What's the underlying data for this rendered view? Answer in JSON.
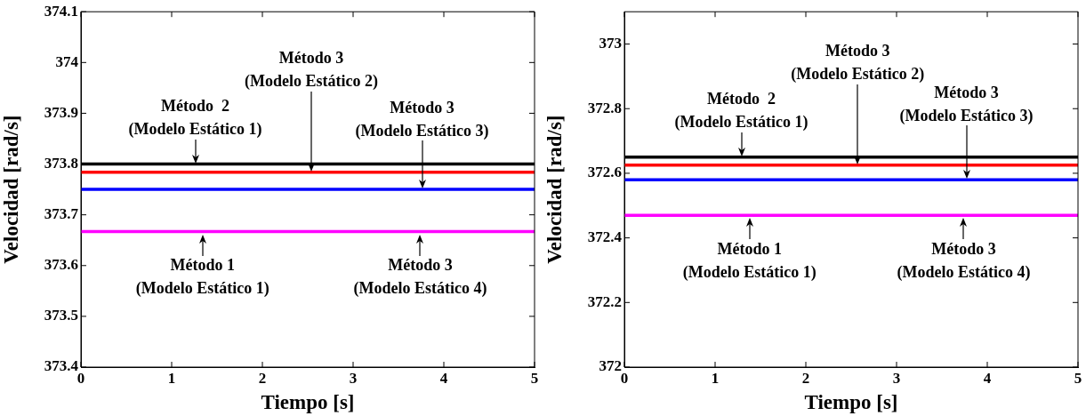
{
  "chart_data": [
    {
      "type": "line",
      "xlabel": "Tiempo [s]",
      "ylabel": "Velocidad [rad/s]",
      "ref_lines": [
        {
          "axis": "y",
          "value": 373.8,
          "color": "#000000"
        },
        {
          "axis": "y",
          "value": 373.784,
          "color": "#ff0000"
        },
        {
          "axis": "y",
          "value": 373.75,
          "color": "#0000ff"
        },
        {
          "axis": "y",
          "value": 373.667,
          "color": "#ff00ff"
        }
      ],
      "xlim": [
        0,
        5
      ],
      "xticks": [
        0,
        1,
        2,
        3,
        4,
        5
      ],
      "ylim": [
        373.4,
        374.1
      ],
      "yticks": [
        373.4,
        373.5,
        373.6,
        373.7,
        373.8,
        373.9,
        374,
        374.1
      ],
      "annotations": [
        {
          "text": "Método  2\n(Modelo Estático 1)",
          "x": 1.26,
          "y": 373.8
        },
        {
          "text": "Método 3\n(Modelo Estático 2)",
          "x": 2.54,
          "y": 373.784
        },
        {
          "text": "Método 3\n(Modelo Estático 3)",
          "x": 3.76,
          "y": 373.75
        },
        {
          "text": "Método 1\n(Modelo Estático 1)",
          "x": 1.34,
          "y": 373.667
        },
        {
          "text": "Método 3\n(Modelo Estático 4)",
          "x": 3.74,
          "y": 373.667
        }
      ]
    },
    {
      "type": "line",
      "xlabel": "Tiempo [s]",
      "ylabel": "Velocidad [rad/s]",
      "ref_lines": [
        {
          "axis": "y",
          "value": 372.65,
          "color": "#000000"
        },
        {
          "axis": "y",
          "value": 372.625,
          "color": "#ff0000"
        },
        {
          "axis": "y",
          "value": 372.58,
          "color": "#0000ff"
        },
        {
          "axis": "y",
          "value": 372.47,
          "color": "#ff00ff"
        }
      ],
      "xlim": [
        0,
        5
      ],
      "xticks": [
        0,
        1,
        2,
        3,
        4,
        5
      ],
      "ylim": [
        372,
        373.1
      ],
      "yticks": [
        372,
        372.2,
        372.4,
        372.6,
        372.8,
        373
      ],
      "annotations": [
        {
          "text": "Método  2\n(Modelo Estático 1)",
          "x": 1.29,
          "y": 372.65
        },
        {
          "text": "Método 3\n(Modelo Estático 2)",
          "x": 2.57,
          "y": 372.625
        },
        {
          "text": "Método 3\n(Modelo Estático 3)",
          "x": 3.77,
          "y": 372.58
        },
        {
          "text": "Método 1\n(Modelo Estático 1)",
          "x": 1.38,
          "y": 372.47
        },
        {
          "text": "Método 3\n(Modelo Estático 4)",
          "x": 3.74,
          "y": 372.47
        }
      ]
    }
  ]
}
